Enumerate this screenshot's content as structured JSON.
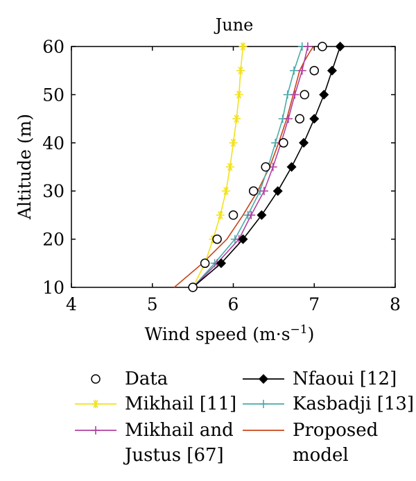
{
  "chart_data": {
    "type": "line",
    "title": "June",
    "xlabel": "Wind speed (m·s⁻¹)",
    "ylabel": "Altitude (m)",
    "xlim": [
      4,
      8
    ],
    "ylim": [
      10,
      60
    ],
    "xticks": [
      "4",
      "5",
      "6",
      "7",
      "8"
    ],
    "yticks": [
      "10",
      "20",
      "30",
      "40",
      "50",
      "60"
    ],
    "grid": false,
    "legend_position": "below",
    "series": [
      {
        "name": "Data",
        "color": "#000000",
        "line": false,
        "marker": "circle-open",
        "x": [
          5.5,
          5.65,
          5.8,
          6.0,
          6.25,
          6.4,
          6.62,
          6.82,
          6.88,
          7.0,
          7.1
        ],
        "y": [
          10,
          15,
          20,
          25,
          30,
          35,
          40,
          45,
          50,
          55,
          60
        ]
      },
      {
        "name": "Nfaoui [12]",
        "color": "#000000",
        "line": true,
        "marker": "diamond-filled",
        "x": [
          5.5,
          5.85,
          6.12,
          6.35,
          6.55,
          6.72,
          6.87,
          7.0,
          7.12,
          7.22,
          7.32
        ],
        "y": [
          10,
          15,
          20,
          25,
          30,
          35,
          40,
          45,
          50,
          55,
          60
        ]
      },
      {
        "name": "Mikhail [11]",
        "color": "#f2e21a",
        "line": true,
        "marker": "asterisk",
        "x": [
          5.5,
          5.65,
          5.75,
          5.84,
          5.91,
          5.96,
          6.0,
          6.04,
          6.07,
          6.09,
          6.12
        ],
        "y": [
          10,
          15,
          20,
          25,
          30,
          35,
          40,
          45,
          50,
          55,
          60
        ]
      },
      {
        "name": "Kasbadji [13]",
        "color": "#4aaaa8",
        "line": true,
        "marker": "plus",
        "x": [
          5.5,
          5.77,
          6.02,
          6.18,
          6.33,
          6.43,
          6.52,
          6.61,
          6.67,
          6.75,
          6.85
        ],
        "y": [
          10,
          15,
          20,
          25,
          30,
          35,
          40,
          45,
          50,
          55,
          60
        ]
      },
      {
        "name": "Mikhail and Justus [67]",
        "color": "#b040a0",
        "line": true,
        "marker": "plus",
        "x": [
          5.5,
          5.8,
          6.07,
          6.22,
          6.38,
          6.49,
          6.59,
          6.68,
          6.76,
          6.85,
          6.92
        ],
        "y": [
          10,
          15,
          20,
          25,
          30,
          35,
          40,
          45,
          50,
          55,
          60
        ]
      },
      {
        "name": "Proposed model",
        "color": "#c8441a",
        "line": true,
        "marker": "none",
        "x": [
          5.27,
          5.62,
          5.92,
          6.12,
          6.3,
          6.45,
          6.56,
          6.66,
          6.74,
          6.82,
          6.88,
          6.95,
          6.99
        ],
        "y": [
          10,
          15,
          20,
          25,
          30,
          35,
          40,
          45,
          50,
          55,
          57,
          59,
          60
        ]
      }
    ]
  },
  "legend": [
    {
      "label": "Data",
      "series": 0
    },
    {
      "label": "Nfaoui [12]",
      "series": 1
    },
    {
      "label": "Mikhail [11]",
      "series": 2
    },
    {
      "label": "Kasbadji [13]",
      "series": 3
    },
    {
      "label_line1": "Mikhail and",
      "label_line2": "Justus [67]",
      "series": 4
    },
    {
      "label_line1": "Proposed",
      "label_line2": "model",
      "series": 5
    }
  ]
}
